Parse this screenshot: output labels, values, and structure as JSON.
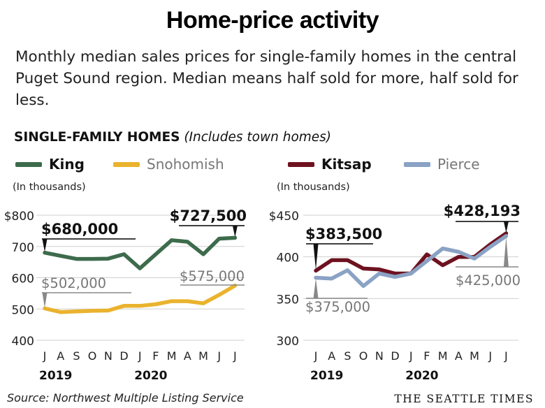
{
  "title": "Home-price activity",
  "subtitle": "Monthly median sales prices for single-family homes in the central Puget Sound region. Median means half sold for more, half sold for less.",
  "section": {
    "label": "SINGLE-FAMILY HOMES",
    "note": "(Includes town homes)"
  },
  "source": "Source: Northwest Multiple Listing Service",
  "brand": "THE SEATTLE TIMES",
  "chart_data": [
    {
      "type": "line",
      "units_label": "(In thousands)",
      "x": [
        "J",
        "A",
        "S",
        "O",
        "N",
        "D",
        "J",
        "F",
        "M",
        "A",
        "M",
        "J",
        "J"
      ],
      "year_labels": [
        {
          "label": "2019",
          "at": 0
        },
        {
          "label": "2020",
          "at": 6
        }
      ],
      "ylim": [
        400,
        800
      ],
      "yticks": [
        400,
        500,
        600,
        700,
        800
      ],
      "ytick_labels": [
        "400",
        "500",
        "600",
        "700",
        "$800"
      ],
      "grid": true,
      "series": [
        {
          "name": "King",
          "color": "#3d6b4c",
          "values": [
            680,
            670,
            660,
            660,
            661,
            675,
            630,
            675,
            720,
            715,
            675,
            725,
            727.5
          ]
        },
        {
          "name": "Snohomish",
          "color": "#eab32e",
          "values": [
            502,
            490,
            492,
            494,
            495,
            510,
            510,
            515,
            525,
            525,
            518,
            545,
            575
          ]
        }
      ],
      "callouts": [
        {
          "text": "$680,000",
          "series": 0,
          "point": 0,
          "bold": true
        },
        {
          "text": "$727,500",
          "series": 0,
          "point": 12,
          "bold": true
        },
        {
          "text": "$502,000",
          "series": 1,
          "point": 0,
          "bold": false
        },
        {
          "text": "$575,000",
          "series": 1,
          "point": 12,
          "bold": false
        }
      ]
    },
    {
      "type": "line",
      "units_label": "(In thousands)",
      "x": [
        "J",
        "A",
        "S",
        "O",
        "N",
        "D",
        "J",
        "F",
        "M",
        "A",
        "M",
        "J",
        "J"
      ],
      "year_labels": [
        {
          "label": "2019",
          "at": 0
        },
        {
          "label": "2020",
          "at": 6
        }
      ],
      "ylim": [
        300,
        450
      ],
      "yticks": [
        300,
        350,
        400,
        450
      ],
      "ytick_labels": [
        "300",
        "350",
        "400",
        "$450"
      ],
      "grid": true,
      "series": [
        {
          "name": "Kitsap",
          "color": "#6e1220",
          "values": [
            383.5,
            396,
            396,
            386,
            385,
            380,
            380,
            403,
            390,
            400,
            400,
            415,
            428.193
          ]
        },
        {
          "name": "Pierce",
          "color": "#8aa2c4",
          "values": [
            375,
            374,
            384,
            365,
            380,
            376,
            380,
            395,
            410,
            406,
            398,
            412,
            425
          ]
        }
      ],
      "callouts": [
        {
          "text": "$383,500",
          "series": 0,
          "point": 0,
          "bold": true
        },
        {
          "text": "$428,193",
          "series": 0,
          "point": 12,
          "bold": true
        },
        {
          "text": "$375,000",
          "series": 1,
          "point": 0,
          "bold": false
        },
        {
          "text": "$425,000",
          "series": 1,
          "point": 12,
          "bold": false
        }
      ]
    }
  ]
}
